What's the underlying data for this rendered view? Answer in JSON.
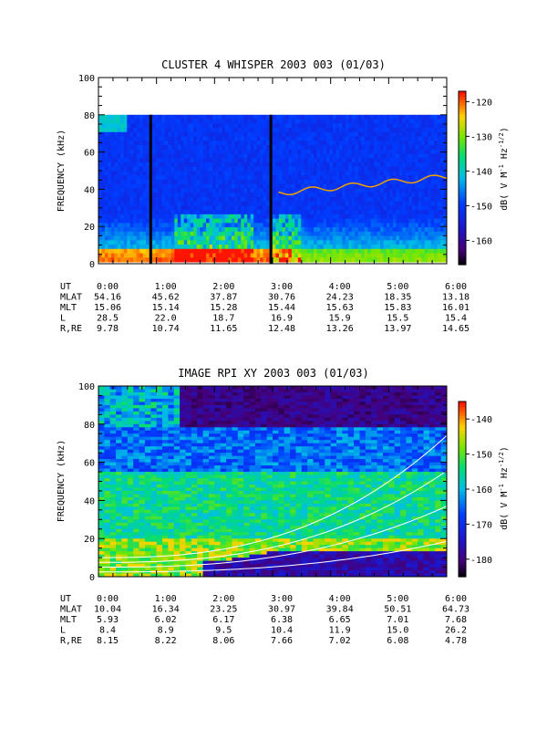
{
  "chart_data": [
    {
      "type": "heatmap",
      "title": "CLUSTER 4 WHISPER 2003 003 (01/03)",
      "ylabel": "FREQUENCY (kHz)",
      "ylim": [
        0,
        100
      ],
      "yticks": [
        "0",
        "20",
        "40",
        "60",
        "80",
        "100"
      ],
      "colorbar": {
        "label_main": "dB( V M",
        "label_sup1": "-1",
        "label_mid": " Hz",
        "label_sup2": "-1/2",
        "label_end": ")",
        "ticks": [
          "-120",
          "-130",
          "-140",
          "-150",
          "-160"
        ],
        "range": [
          -167,
          -117
        ]
      },
      "xlim_hours": [
        0,
        6
      ],
      "gaps_hours": [
        0.9,
        2.97
      ],
      "ephemeris": {
        "labels": [
          "UT",
          "MLAT",
          "MLT",
          "L",
          "R,RE"
        ],
        "times": [
          "0:00",
          "1:00",
          "2:00",
          "3:00",
          "4:00",
          "5:00",
          "6:00"
        ],
        "rows": [
          [
            "54.16",
            "45.62",
            "37.87",
            "30.76",
            "24.23",
            "18.35",
            "13.18"
          ],
          [
            "15.06",
            "15.14",
            "15.28",
            "15.44",
            "15.63",
            "15.83",
            "16.01"
          ],
          [
            "28.5",
            "22.0",
            "18.7",
            "16.9",
            "15.9",
            "15.5",
            "15.4"
          ],
          [
            "9.78",
            "10.74",
            "11.65",
            "12.48",
            "13.26",
            "13.97",
            "14.65"
          ]
        ]
      }
    },
    {
      "type": "heatmap",
      "title": "IMAGE RPI XY 2003 003 (01/03)",
      "ylabel": "FREQUENCY (kHz)",
      "ylim": [
        0,
        100
      ],
      "yticks": [
        "0",
        "20",
        "40",
        "60",
        "80",
        "100"
      ],
      "colorbar": {
        "label_main": "dB( V M",
        "label_sup1": "-1",
        "label_mid": " Hz",
        "label_sup2": "-1/2",
        "label_end": ")",
        "ticks": [
          "-140",
          "-150",
          "-160",
          "-170",
          "-180"
        ],
        "range": [
          -185,
          -135
        ]
      },
      "xlim_hours": [
        0,
        6
      ],
      "ephemeris": {
        "labels": [
          "UT",
          "MLAT",
          "MLT",
          "L",
          "R,RE"
        ],
        "times": [
          "0:00",
          "1:00",
          "2:00",
          "3:00",
          "4:00",
          "5:00",
          "6:00"
        ],
        "rows": [
          [
            "10.04",
            "16.34",
            "23.25",
            "30.97",
            "39.84",
            "50.51",
            "64.73"
          ],
          [
            "5.93",
            "6.02",
            "6.17",
            "6.38",
            "6.65",
            "7.01",
            "7.68"
          ],
          [
            "8.4",
            "8.9",
            "9.5",
            "10.4",
            "11.9",
            "15.0",
            "26.2"
          ],
          [
            "8.15",
            "8.22",
            "8.06",
            "7.66",
            "7.02",
            "6.08",
            "4.78"
          ]
        ]
      }
    }
  ]
}
